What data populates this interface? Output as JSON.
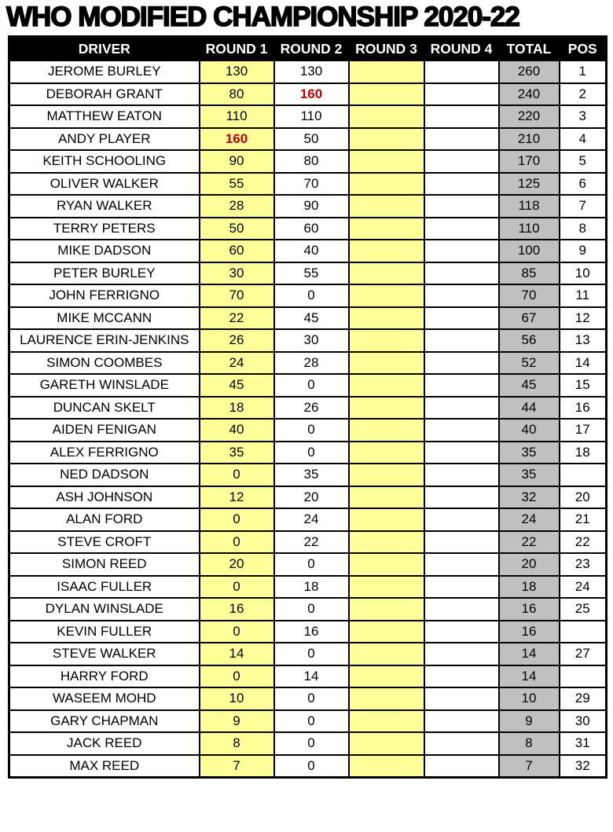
{
  "title": "WHO MODIFIED CHAMPIONSHIP 2020-22",
  "colors": {
    "round_highlight": "#FFFF99",
    "total_column": "#C0C0C0",
    "top_score_red": "#C00000",
    "header_bg": "#000000",
    "header_text": "#FFFFFF"
  },
  "table": {
    "columns": [
      "DRIVER",
      "ROUND 1",
      "ROUND 2",
      "ROUND 3",
      "ROUND 4",
      "TOTAL",
      "POS"
    ],
    "rows": [
      {
        "driver": "JEROME BURLEY",
        "r1": "130",
        "r2": "130",
        "r3": "",
        "r4": "",
        "total": "260",
        "pos": "1",
        "red": []
      },
      {
        "driver": "DEBORAH GRANT",
        "r1": "80",
        "r2": "160",
        "r3": "",
        "r4": "",
        "total": "240",
        "pos": "2",
        "red": [
          "r2"
        ]
      },
      {
        "driver": "MATTHEW EATON",
        "r1": "110",
        "r2": "110",
        "r3": "",
        "r4": "",
        "total": "220",
        "pos": "3",
        "red": []
      },
      {
        "driver": "ANDY PLAYER",
        "r1": "160",
        "r2": "50",
        "r3": "",
        "r4": "",
        "total": "210",
        "pos": "4",
        "red": [
          "r1"
        ]
      },
      {
        "driver": "KEITH SCHOOLING",
        "r1": "90",
        "r2": "80",
        "r3": "",
        "r4": "",
        "total": "170",
        "pos": "5",
        "red": []
      },
      {
        "driver": "OLIVER WALKER",
        "r1": "55",
        "r2": "70",
        "r3": "",
        "r4": "",
        "total": "125",
        "pos": "6",
        "red": []
      },
      {
        "driver": "RYAN WALKER",
        "r1": "28",
        "r2": "90",
        "r3": "",
        "r4": "",
        "total": "118",
        "pos": "7",
        "red": []
      },
      {
        "driver": "TERRY PETERS",
        "r1": "50",
        "r2": "60",
        "r3": "",
        "r4": "",
        "total": "110",
        "pos": "8",
        "red": []
      },
      {
        "driver": "MIKE DADSON",
        "r1": "60",
        "r2": "40",
        "r3": "",
        "r4": "",
        "total": "100",
        "pos": "9",
        "red": []
      },
      {
        "driver": "PETER BURLEY",
        "r1": "30",
        "r2": "55",
        "r3": "",
        "r4": "",
        "total": "85",
        "pos": "10",
        "red": []
      },
      {
        "driver": "JOHN FERRIGNO",
        "r1": "70",
        "r2": "0",
        "r3": "",
        "r4": "",
        "total": "70",
        "pos": "11",
        "red": []
      },
      {
        "driver": "MIKE MCCANN",
        "r1": "22",
        "r2": "45",
        "r3": "",
        "r4": "",
        "total": "67",
        "pos": "12",
        "red": []
      },
      {
        "driver": "LAURENCE ERIN-JENKINS",
        "r1": "26",
        "r2": "30",
        "r3": "",
        "r4": "",
        "total": "56",
        "pos": "13",
        "red": []
      },
      {
        "driver": "SIMON COOMBES",
        "r1": "24",
        "r2": "28",
        "r3": "",
        "r4": "",
        "total": "52",
        "pos": "14",
        "red": []
      },
      {
        "driver": "GARETH WINSLADE",
        "r1": "45",
        "r2": "0",
        "r3": "",
        "r4": "",
        "total": "45",
        "pos": "15",
        "red": []
      },
      {
        "driver": "DUNCAN SKELT",
        "r1": "18",
        "r2": "26",
        "r3": "",
        "r4": "",
        "total": "44",
        "pos": "16",
        "red": []
      },
      {
        "driver": "AIDEN FENIGAN",
        "r1": "40",
        "r2": "0",
        "r3": "",
        "r4": "",
        "total": "40",
        "pos": "17",
        "red": []
      },
      {
        "driver": "ALEX FERRIGNO",
        "r1": "35",
        "r2": "0",
        "r3": "",
        "r4": "",
        "total": "35",
        "pos": "18",
        "red": []
      },
      {
        "driver": "NED DADSON",
        "r1": "0",
        "r2": "35",
        "r3": "",
        "r4": "",
        "total": "35",
        "pos": "",
        "red": []
      },
      {
        "driver": "ASH JOHNSON",
        "r1": "12",
        "r2": "20",
        "r3": "",
        "r4": "",
        "total": "32",
        "pos": "20",
        "red": []
      },
      {
        "driver": "ALAN FORD",
        "r1": "0",
        "r2": "24",
        "r3": "",
        "r4": "",
        "total": "24",
        "pos": "21",
        "red": []
      },
      {
        "driver": "STEVE CROFT",
        "r1": "0",
        "r2": "22",
        "r3": "",
        "r4": "",
        "total": "22",
        "pos": "22",
        "red": []
      },
      {
        "driver": "SIMON REED",
        "r1": "20",
        "r2": "0",
        "r3": "",
        "r4": "",
        "total": "20",
        "pos": "23",
        "red": []
      },
      {
        "driver": "ISAAC FULLER",
        "r1": "0",
        "r2": "18",
        "r3": "",
        "r4": "",
        "total": "18",
        "pos": "24",
        "red": []
      },
      {
        "driver": "DYLAN WINSLADE",
        "r1": "16",
        "r2": "0",
        "r3": "",
        "r4": "",
        "total": "16",
        "pos": "25",
        "red": []
      },
      {
        "driver": "KEVIN FULLER",
        "r1": "0",
        "r2": "16",
        "r3": "",
        "r4": "",
        "total": "16",
        "pos": "",
        "red": []
      },
      {
        "driver": "STEVE WALKER",
        "r1": "14",
        "r2": "0",
        "r3": "",
        "r4": "",
        "total": "14",
        "pos": "27",
        "red": []
      },
      {
        "driver": "HARRY FORD",
        "r1": "0",
        "r2": "14",
        "r3": "",
        "r4": "",
        "total": "14",
        "pos": "",
        "red": []
      },
      {
        "driver": "WASEEM MOHD",
        "r1": "10",
        "r2": "0",
        "r3": "",
        "r4": "",
        "total": "10",
        "pos": "29",
        "red": []
      },
      {
        "driver": "GARY CHAPMAN",
        "r1": "9",
        "r2": "0",
        "r3": "",
        "r4": "",
        "total": "9",
        "pos": "30",
        "red": []
      },
      {
        "driver": "JACK REED",
        "r1": "8",
        "r2": "0",
        "r3": "",
        "r4": "",
        "total": "8",
        "pos": "31",
        "red": []
      },
      {
        "driver": "MAX REED",
        "r1": "7",
        "r2": "0",
        "r3": "",
        "r4": "",
        "total": "7",
        "pos": "32",
        "red": []
      }
    ]
  }
}
